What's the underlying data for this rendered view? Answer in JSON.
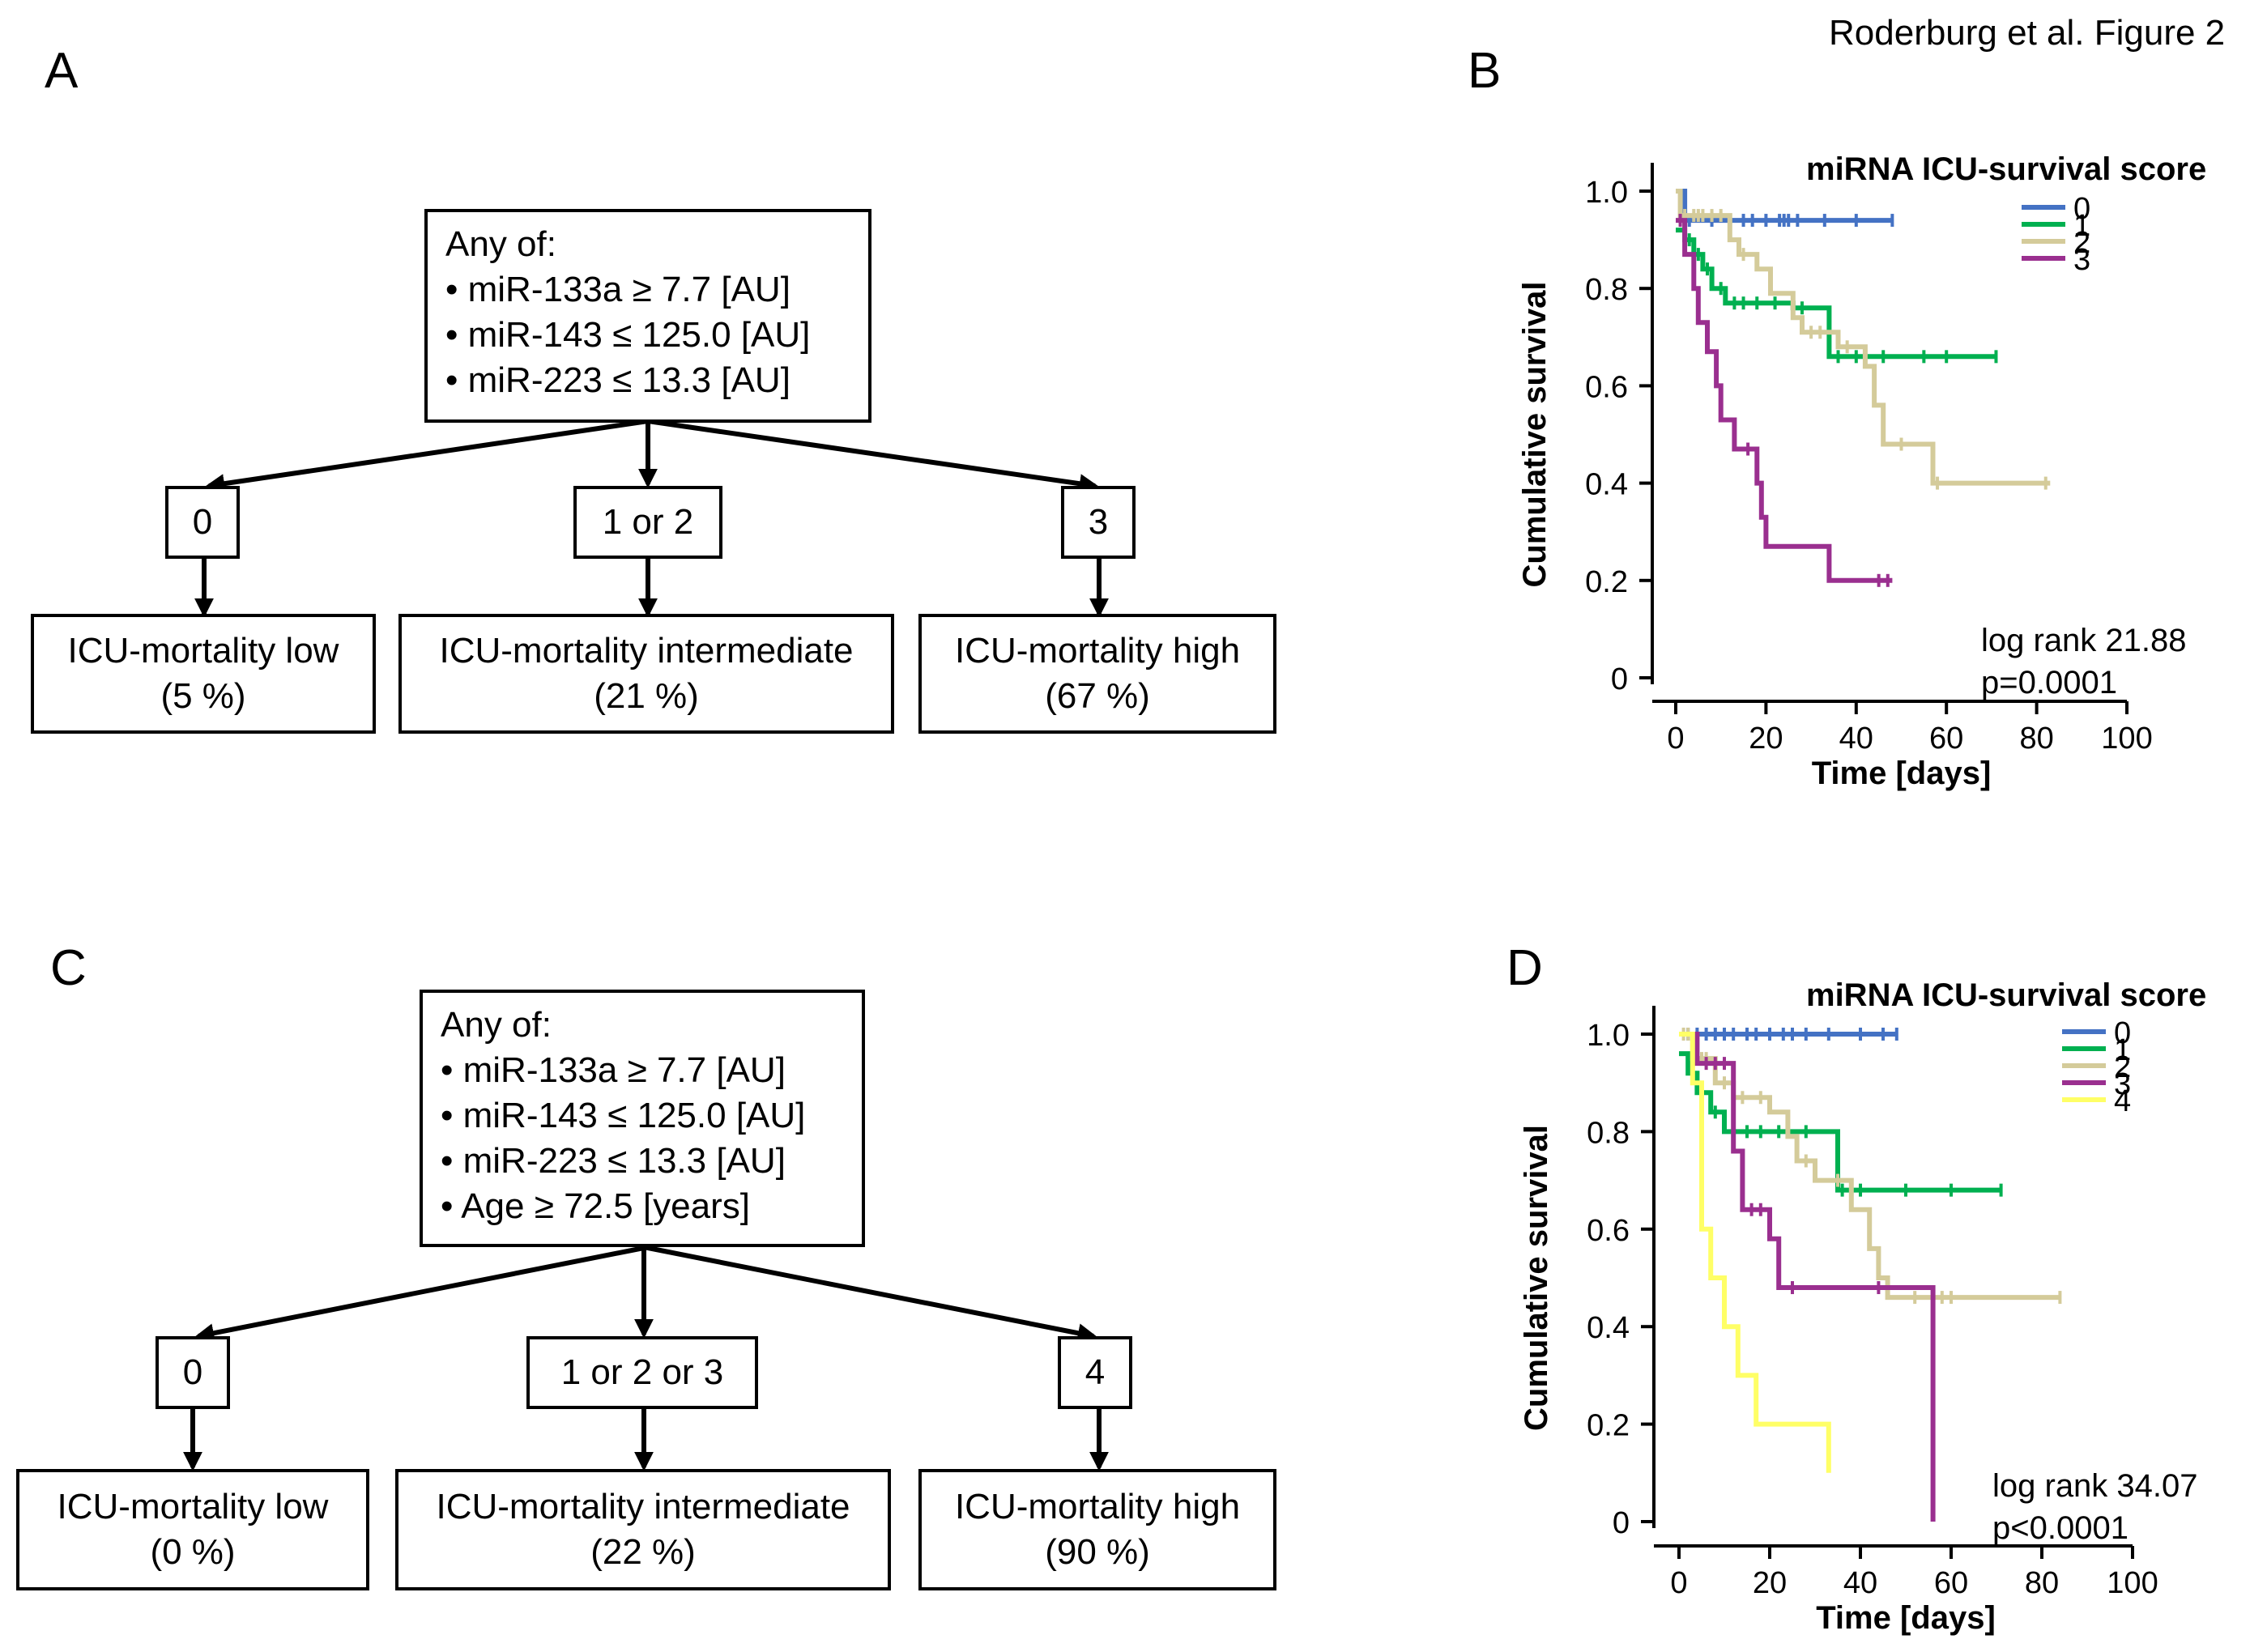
{
  "figure_label": "Roderburg et al. Figure 2",
  "panels": {
    "a": "A",
    "b": "B",
    "c": "C",
    "d": "D"
  },
  "tree_a": {
    "condition": [
      "Any of:",
      "• miR-133a ≥ 7.7 [AU]",
      "• miR-143 ≤ 125.0 [AU]",
      "• miR-223 ≤ 13.3 [AU]"
    ],
    "groups": [
      "0",
      "1 or 2",
      "3"
    ],
    "outcomes": [
      {
        "label": "ICU-mortality low",
        "pct": "(5 %)"
      },
      {
        "label": "ICU-mortality intermediate",
        "pct": "(21 %)"
      },
      {
        "label": "ICU-mortality high",
        "pct": "(67 %)"
      }
    ]
  },
  "tree_c": {
    "condition": [
      "Any of:",
      "• miR-133a ≥ 7.7 [AU]",
      "• miR-143 ≤ 125.0 [AU]",
      "• miR-223 ≤ 13.3 [AU]",
      "• Age ≥ 72.5 [years]"
    ],
    "groups": [
      "0",
      "1 or 2 or 3",
      "4"
    ],
    "outcomes": [
      {
        "label": "ICU-mortality low",
        "pct": "(0 %)"
      },
      {
        "label": "ICU-mortality intermediate",
        "pct": "(22 %)"
      },
      {
        "label": "ICU-mortality high",
        "pct": "(90 %)"
      }
    ]
  },
  "chart_data": [
    {
      "type": "line",
      "subtype": "kaplan-meier",
      "panel": "B",
      "xlabel": "Time [days]",
      "ylabel": "Cumulative survival",
      "xlim": [
        0,
        100
      ],
      "ylim": [
        0,
        1
      ],
      "xticks": [
        "0",
        "20",
        "40",
        "60",
        "80",
        "100"
      ],
      "yticks": [
        "0",
        "0.2",
        "0.4",
        "0.6",
        "0.8",
        "1.0"
      ],
      "legend_title": "miRNA ICU-survival score",
      "stat_line1": "log rank 21.88",
      "stat_line2": "p=0.0001",
      "series": [
        {
          "name": "0",
          "color": "#4472C4",
          "steps": [
            [
              0,
              1.0
            ],
            [
              2,
              1.0
            ],
            [
              2,
              0.94
            ],
            [
              48,
              0.94
            ]
          ],
          "censored": [
            2,
            3,
            8,
            12,
            15,
            17,
            20,
            23,
            24,
            25,
            27,
            33,
            40,
            48
          ]
        },
        {
          "name": "1",
          "color": "#00B050",
          "steps": [
            [
              0,
              0.92
            ],
            [
              2,
              0.92
            ],
            [
              2,
              0.9
            ],
            [
              4,
              0.9
            ],
            [
              4,
              0.87
            ],
            [
              6,
              0.87
            ],
            [
              6,
              0.84
            ],
            [
              8,
              0.84
            ],
            [
              8,
              0.8
            ],
            [
              11,
              0.8
            ],
            [
              11,
              0.77
            ],
            [
              26,
              0.77
            ],
            [
              26,
              0.76
            ],
            [
              34,
              0.76
            ],
            [
              34,
              0.66
            ],
            [
              71,
              0.66
            ]
          ],
          "censored": [
            3,
            5,
            7,
            10,
            13,
            15,
            18,
            22,
            28,
            36,
            40,
            46,
            55,
            60,
            71
          ]
        },
        {
          "name": "2",
          "color": "#D4CB9A",
          "steps": [
            [
              0,
              1.0
            ],
            [
              1,
              1.0
            ],
            [
              1,
              0.95
            ],
            [
              12,
              0.95
            ],
            [
              12,
              0.9
            ],
            [
              14,
              0.9
            ],
            [
              14,
              0.87
            ],
            [
              18,
              0.87
            ],
            [
              18,
              0.84
            ],
            [
              21,
              0.84
            ],
            [
              21,
              0.79
            ],
            [
              26,
              0.79
            ],
            [
              26,
              0.74
            ],
            [
              28,
              0.74
            ],
            [
              28,
              0.71
            ],
            [
              36,
              0.71
            ],
            [
              36,
              0.68
            ],
            [
              42,
              0.68
            ],
            [
              42,
              0.64
            ],
            [
              44,
              0.64
            ],
            [
              44,
              0.56
            ],
            [
              46,
              0.56
            ],
            [
              46,
              0.48
            ],
            [
              57,
              0.48
            ],
            [
              57,
              0.4
            ],
            [
              83,
              0.4
            ]
          ],
          "censored": [
            1,
            2,
            4,
            5,
            6,
            8,
            10,
            15,
            30,
            32,
            38,
            50,
            58,
            82
          ]
        },
        {
          "name": "3",
          "color": "#9A2F8F",
          "steps": [
            [
              0,
              0.94
            ],
            [
              2,
              0.94
            ],
            [
              2,
              0.87
            ],
            [
              4,
              0.87
            ],
            [
              4,
              0.8
            ],
            [
              5,
              0.8
            ],
            [
              5,
              0.73
            ],
            [
              7,
              0.73
            ],
            [
              7,
              0.67
            ],
            [
              9,
              0.67
            ],
            [
              9,
              0.6
            ],
            [
              10,
              0.6
            ],
            [
              10,
              0.53
            ],
            [
              13,
              0.53
            ],
            [
              13,
              0.47
            ],
            [
              18,
              0.47
            ],
            [
              18,
              0.4
            ],
            [
              19,
              0.4
            ],
            [
              19,
              0.33
            ],
            [
              20,
              0.33
            ],
            [
              20,
              0.27
            ],
            [
              34,
              0.27
            ],
            [
              34,
              0.2
            ],
            [
              48,
              0.2
            ]
          ],
          "censored": [
            1,
            16,
            45,
            47
          ]
        }
      ]
    },
    {
      "type": "line",
      "subtype": "kaplan-meier",
      "panel": "D",
      "xlabel": "Time [days]",
      "ylabel": "Cumulative survival",
      "xlim": [
        0,
        100
      ],
      "ylim": [
        0,
        1
      ],
      "xticks": [
        "0",
        "20",
        "40",
        "60",
        "80",
        "100"
      ],
      "yticks": [
        "0",
        "0.2",
        "0.4",
        "0.6",
        "0.8",
        "1.0"
      ],
      "legend_title": "miRNA ICU-survival score",
      "stat_line1": "log rank 34.07",
      "stat_line2": "p<0.0001",
      "series": [
        {
          "name": "0",
          "color": "#4472C4",
          "steps": [
            [
              0,
              1.0
            ],
            [
              48,
              1.0
            ]
          ],
          "censored": [
            2,
            4,
            6,
            8,
            10,
            12,
            15,
            17,
            20,
            23,
            25,
            28,
            33,
            40,
            45,
            48
          ]
        },
        {
          "name": "1",
          "color": "#00B050",
          "steps": [
            [
              0,
              0.96
            ],
            [
              2,
              0.96
            ],
            [
              2,
              0.92
            ],
            [
              4,
              0.92
            ],
            [
              4,
              0.88
            ],
            [
              7,
              0.88
            ],
            [
              7,
              0.84
            ],
            [
              10,
              0.84
            ],
            [
              10,
              0.8
            ],
            [
              35,
              0.8
            ],
            [
              35,
              0.68
            ],
            [
              71,
              0.68
            ]
          ],
          "censored": [
            3,
            5,
            8,
            12,
            15,
            18,
            22,
            28,
            36,
            40,
            50,
            60,
            71
          ]
        },
        {
          "name": "2",
          "color": "#D4CB9A",
          "steps": [
            [
              0,
              1.0
            ],
            [
              3,
              1.0
            ],
            [
              3,
              0.95
            ],
            [
              8,
              0.95
            ],
            [
              8,
              0.9
            ],
            [
              12,
              0.9
            ],
            [
              12,
              0.87
            ],
            [
              20,
              0.87
            ],
            [
              20,
              0.84
            ],
            [
              24,
              0.84
            ],
            [
              24,
              0.79
            ],
            [
              26,
              0.79
            ],
            [
              26,
              0.74
            ],
            [
              30,
              0.74
            ],
            [
              30,
              0.7
            ],
            [
              38,
              0.7
            ],
            [
              38,
              0.64
            ],
            [
              42,
              0.64
            ],
            [
              42,
              0.56
            ],
            [
              44,
              0.56
            ],
            [
              44,
              0.5
            ],
            [
              46,
              0.5
            ],
            [
              46,
              0.46
            ],
            [
              84,
              0.46
            ]
          ],
          "censored": [
            1,
            2,
            5,
            6,
            10,
            14,
            18,
            28,
            35,
            52,
            58,
            60,
            84
          ]
        },
        {
          "name": "3",
          "color": "#9A2F8F",
          "steps": [
            [
              0,
              1.0
            ],
            [
              4,
              1.0
            ],
            [
              4,
              0.94
            ],
            [
              12,
              0.94
            ],
            [
              12,
              0.76
            ],
            [
              14,
              0.76
            ],
            [
              14,
              0.64
            ],
            [
              20,
              0.64
            ],
            [
              20,
              0.58
            ],
            [
              22,
              0.58
            ],
            [
              22,
              0.48
            ],
            [
              56,
              0.48
            ],
            [
              56,
              0.0
            ]
          ],
          "censored": [
            6,
            8,
            10,
            16,
            18,
            25,
            44
          ]
        },
        {
          "name": "4",
          "color": "#FFFF66",
          "steps": [
            [
              0,
              1.0
            ],
            [
              3,
              1.0
            ],
            [
              3,
              0.9
            ],
            [
              5,
              0.9
            ],
            [
              5,
              0.6
            ],
            [
              7,
              0.6
            ],
            [
              7,
              0.5
            ],
            [
              10,
              0.5
            ],
            [
              10,
              0.4
            ],
            [
              13,
              0.4
            ],
            [
              13,
              0.3
            ],
            [
              17,
              0.3
            ],
            [
              17,
              0.2
            ],
            [
              33,
              0.2
            ],
            [
              33,
              0.1
            ]
          ],
          "censored": []
        }
      ]
    }
  ]
}
